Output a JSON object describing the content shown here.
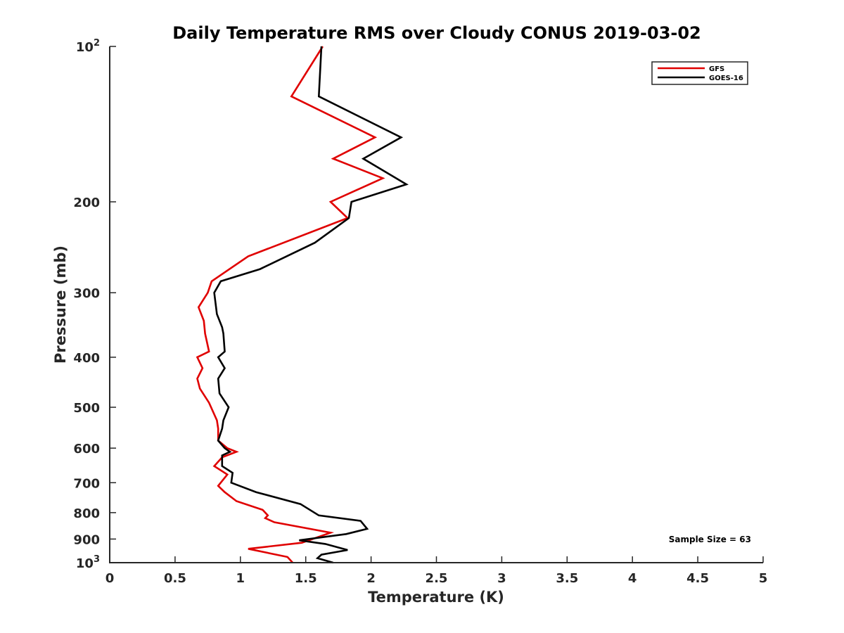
{
  "chart_data": {
    "type": "line",
    "title": "Daily Temperature RMS over Cloudy CONUS 2019-03-02",
    "xlabel": "Temperature (K)",
    "ylabel": "Pressure (mb)",
    "xlim": [
      0,
      5
    ],
    "ylim": [
      1000,
      100
    ],
    "yscale": "log",
    "y_reversed": true,
    "grid": false,
    "legend_position": "top-right",
    "xticks": [
      {
        "value": 0,
        "label": "0"
      },
      {
        "value": 0.5,
        "label": "0.5"
      },
      {
        "value": 1,
        "label": "1"
      },
      {
        "value": 1.5,
        "label": "1.5"
      },
      {
        "value": 2,
        "label": "2"
      },
      {
        "value": 2.5,
        "label": "2.5"
      },
      {
        "value": 3,
        "label": "3"
      },
      {
        "value": 3.5,
        "label": "3.5"
      },
      {
        "value": 4,
        "label": "4"
      },
      {
        "value": 4.5,
        "label": "4.5"
      },
      {
        "value": 5,
        "label": "5"
      }
    ],
    "yticks": [
      {
        "value": 100,
        "base": "10",
        "exp": "2"
      },
      {
        "value": 200,
        "label": "200"
      },
      {
        "value": 300,
        "label": "300"
      },
      {
        "value": 400,
        "label": "400"
      },
      {
        "value": 500,
        "label": "500"
      },
      {
        "value": 600,
        "label": "600"
      },
      {
        "value": 700,
        "label": "700"
      },
      {
        "value": 800,
        "label": "800"
      },
      {
        "value": 900,
        "label": "900"
      },
      {
        "value": 1000,
        "base": "10",
        "exp": "3"
      }
    ],
    "series": [
      {
        "name": "GFS",
        "color": "#e00000",
        "x": [
          1.63,
          1.39,
          2.03,
          1.71,
          2.09,
          1.69,
          1.82,
          1.06,
          0.78,
          0.75,
          0.68,
          0.72,
          0.73,
          0.76,
          0.67,
          0.71,
          0.67,
          0.69,
          0.76,
          0.82,
          0.83,
          0.83,
          0.9,
          0.97,
          0.86,
          0.8,
          0.9,
          0.83,
          0.88,
          0.97,
          1.17,
          1.21,
          1.19,
          1.26,
          1.69,
          1.47,
          1.06,
          1.36,
          1.4
        ],
        "y": [
          100,
          125,
          150,
          165,
          180,
          200,
          215,
          255,
          285,
          300,
          320,
          340,
          360,
          390,
          400,
          420,
          440,
          460,
          490,
          530,
          550,
          580,
          600,
          610,
          625,
          650,
          675,
          710,
          730,
          760,
          790,
          810,
          820,
          835,
          875,
          915,
          940,
          975,
          1000
        ]
      },
      {
        "name": "GOES-16",
        "color": "#000000",
        "x": [
          1.62,
          1.6,
          2.23,
          1.94,
          2.27,
          1.85,
          1.83,
          1.57,
          1.15,
          0.85,
          0.8,
          0.82,
          0.86,
          0.87,
          0.88,
          0.83,
          0.88,
          0.83,
          0.84,
          0.91,
          0.87,
          0.86,
          0.83,
          0.88,
          0.92,
          0.86,
          0.86,
          0.94,
          0.93,
          1.12,
          1.46,
          1.6,
          1.92,
          1.97,
          1.81,
          1.45,
          1.65,
          1.82,
          1.62,
          1.59,
          1.71
        ],
        "y": [
          100,
          125,
          150,
          165,
          185,
          200,
          215,
          240,
          270,
          285,
          300,
          330,
          350,
          360,
          390,
          400,
          420,
          440,
          470,
          500,
          530,
          550,
          580,
          600,
          610,
          620,
          650,
          670,
          700,
          730,
          770,
          810,
          830,
          860,
          880,
          905,
          920,
          945,
          965,
          980,
          1000
        ]
      }
    ],
    "annotation": "Sample Size = 63"
  }
}
